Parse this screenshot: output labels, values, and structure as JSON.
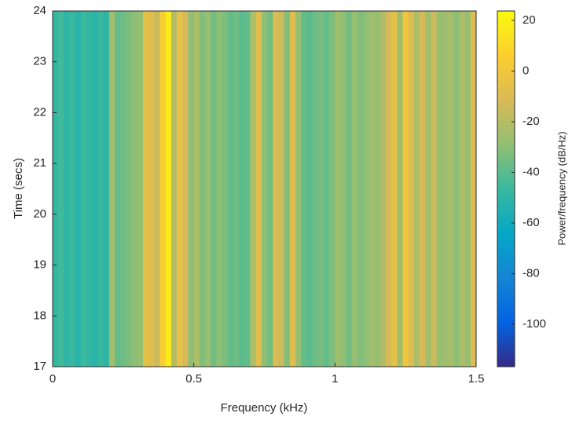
{
  "chart_data": {
    "type": "heatmap",
    "x_label": "Frequency (kHz)",
    "y_label": "Time (secs)",
    "colorbar_label": "Power/frequency (dB/Hz)",
    "xlim": [
      0,
      1.5
    ],
    "xticks": [
      0,
      0.5,
      1,
      1.5
    ],
    "ylim": [
      17,
      24
    ],
    "yticks": [
      17,
      18,
      19,
      20,
      21,
      22,
      23,
      24
    ],
    "clim": [
      -116.7,
      23.7
    ],
    "cticks": [
      -100,
      -80,
      -60,
      -40,
      -20,
      0,
      20
    ],
    "colormap": [
      "#352a87",
      "#0363e1",
      "#1485d4",
      "#06a7c6",
      "#38b99e",
      "#92bf73",
      "#d9ba56",
      "#fcce2e",
      "#f9fb0e"
    ],
    "x": [
      0.01,
      0.03,
      0.05,
      0.07,
      0.09,
      0.11,
      0.13,
      0.15,
      0.17,
      0.19,
      0.21,
      0.23,
      0.25,
      0.27,
      0.29,
      0.31,
      0.33,
      0.35,
      0.37,
      0.39,
      0.41,
      0.43,
      0.45,
      0.47,
      0.49,
      0.51,
      0.53,
      0.55,
      0.57,
      0.59,
      0.61,
      0.63,
      0.65,
      0.67,
      0.69,
      0.71,
      0.73,
      0.75,
      0.77,
      0.79,
      0.81,
      0.83,
      0.85,
      0.87,
      0.89,
      0.91,
      0.93,
      0.95,
      0.97,
      0.99,
      1.01,
      1.03,
      1.05,
      1.07,
      1.09,
      1.11,
      1.13,
      1.15,
      1.17,
      1.19,
      1.21,
      1.23,
      1.25,
      1.27,
      1.29,
      1.31,
      1.33,
      1.35,
      1.37,
      1.39,
      1.41,
      1.43,
      1.45,
      1.47,
      1.49
    ],
    "values": [
      -48,
      -45,
      -50,
      -47,
      -52,
      -46,
      -49,
      -51,
      -47,
      -50,
      -25,
      -38,
      -36,
      -33,
      -30,
      -28,
      -5,
      -8,
      -15,
      5,
      18,
      -20,
      -5,
      -12,
      -30,
      -22,
      -32,
      -28,
      -35,
      -30,
      -33,
      -38,
      -36,
      -40,
      -38,
      -22,
      -8,
      -30,
      -35,
      -10,
      -15,
      -32,
      -8,
      -28,
      -38,
      -40,
      -36,
      -34,
      -38,
      -33,
      -26,
      -30,
      -35,
      -28,
      -32,
      -30,
      -25,
      -28,
      -22,
      -12,
      -5,
      -25,
      0,
      -10,
      -22,
      -12,
      -25,
      -15,
      -28,
      -26,
      -24,
      -30,
      -22,
      -28,
      -10
    ]
  }
}
